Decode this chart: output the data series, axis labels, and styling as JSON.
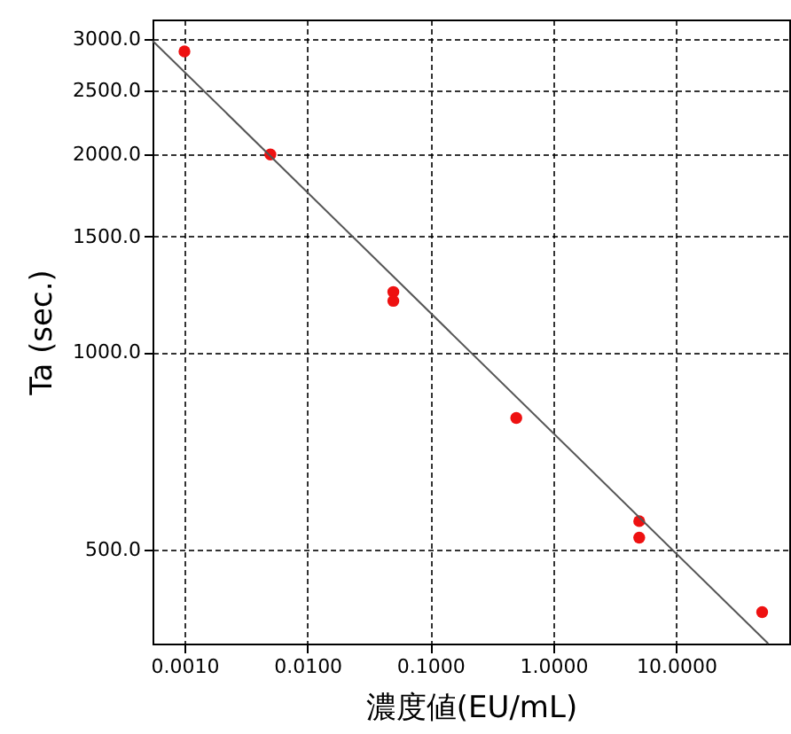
{
  "chart_data": {
    "type": "scatter",
    "xlabel": "濃度値(EU/mL)",
    "ylabel": "Ta (sec.)",
    "log": "xy",
    "grid": true,
    "xlim": [
      0.00055,
      83
    ],
    "ylim": [
      360,
      3210
    ],
    "xticks": [
      {
        "value": 0.001,
        "label": "0.0010"
      },
      {
        "value": 0.01,
        "label": "0.0100"
      },
      {
        "value": 0.1,
        "label": "0.1000"
      },
      {
        "value": 1,
        "label": "1.0000"
      },
      {
        "value": 10,
        "label": "10.0000"
      }
    ],
    "yticks": [
      {
        "value": 500,
        "label": "500.0"
      },
      {
        "value": 1000,
        "label": "1000.0"
      },
      {
        "value": 1500,
        "label": "1500.0"
      },
      {
        "value": 2000,
        "label": "2000.0"
      },
      {
        "value": 2500,
        "label": "2500.0"
      },
      {
        "value": 3000,
        "label": "3000.0"
      }
    ],
    "series": [
      {
        "marker": "circle",
        "color": "#ee1111",
        "values": [
          2870,
          2000,
          1235,
          1197,
          794,
          553,
          522,
          402
        ],
        "x": [
          0.001,
          0.005,
          0.05,
          0.05,
          0.5,
          5,
          5,
          50
        ]
      },
      {
        "type": "line",
        "color": "#555555",
        "x": [
          0.00055,
          56
        ],
        "values": [
          2980,
          360
        ]
      }
    ]
  }
}
